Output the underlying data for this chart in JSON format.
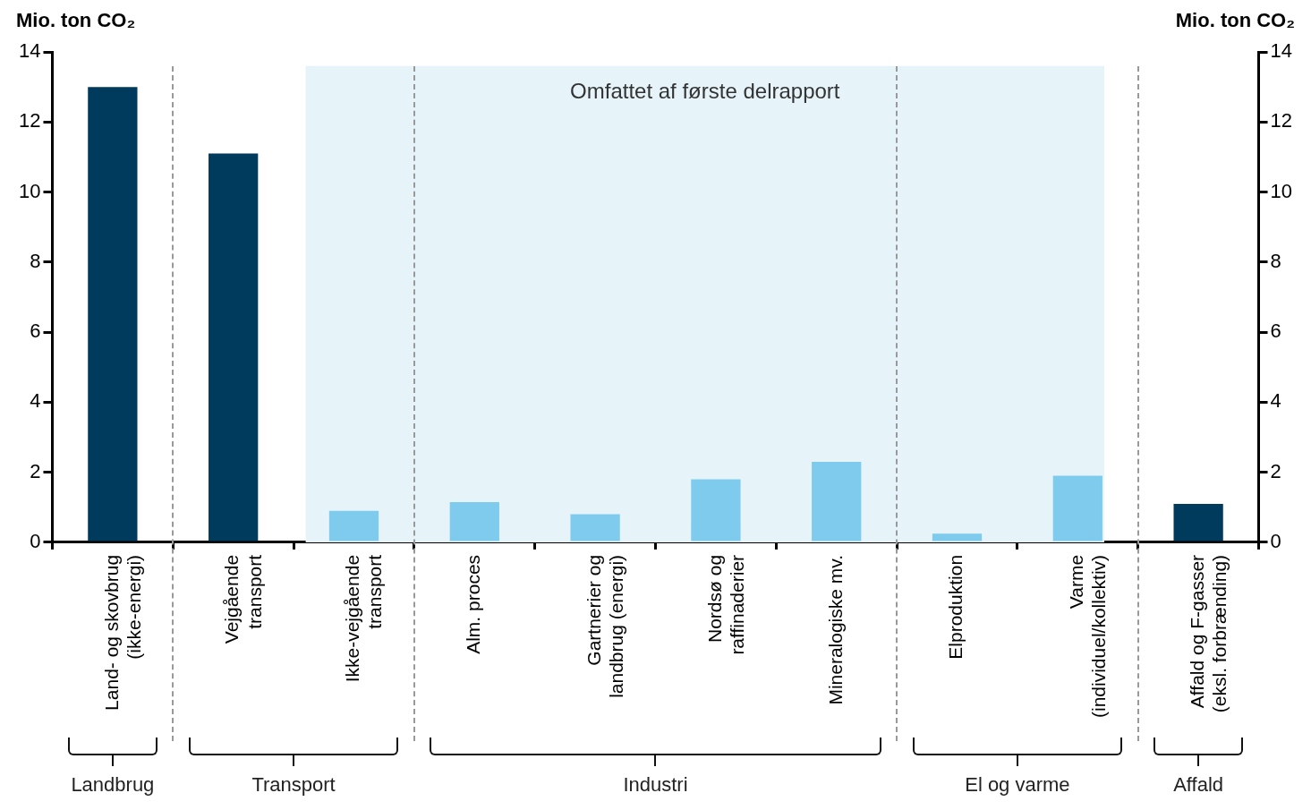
{
  "chart_data": {
    "type": "bar",
    "ylabel": "Mio. ton CO₂",
    "y2label": "Mio. ton CO₂",
    "categories": [
      "Land- og skovbrug\n(ikke-energi)",
      "Vejgående\ntransport",
      "Ikke-vejgående\ntransport",
      "Alm. proces",
      "Gartnerier og\nlandbrug (energi)",
      "Nordsø og\nraffinaderier",
      "Mineralogiske mv.",
      "Elproduktion",
      "Varme\n(individuel/kollektiv)",
      "Affald og F-gasser\n(eksl. forbrænding)"
    ],
    "values": [
      13.0,
      11.1,
      0.9,
      1.15,
      0.8,
      1.8,
      2.3,
      0.25,
      1.9,
      1.1
    ],
    "colors": [
      "#003a5c",
      "#003a5c",
      "#7ecbed",
      "#7ecbed",
      "#7ecbed",
      "#7ecbed",
      "#7ecbed",
      "#7ecbed",
      "#7ecbed",
      "#003a5c"
    ],
    "ylim": [
      0,
      14
    ],
    "yticks": [
      0,
      2,
      4,
      6,
      8,
      10,
      12,
      14
    ],
    "y2lim": [
      0,
      14
    ],
    "y2ticks": [
      0,
      2,
      4,
      6,
      8,
      10,
      12,
      14
    ],
    "bands": [
      {
        "axis": "x",
        "from": "Ikke-vejgående\ntransport",
        "to": "Varme\n(individuel/kollektiv)",
        "label": "Omfattet af første delrapport",
        "color": "#e6f4fa"
      }
    ],
    "annotations": [
      "Landbrug",
      "Transport",
      "Industri",
      "El og varme",
      "Affald"
    ],
    "grid": false,
    "legend": false
  }
}
